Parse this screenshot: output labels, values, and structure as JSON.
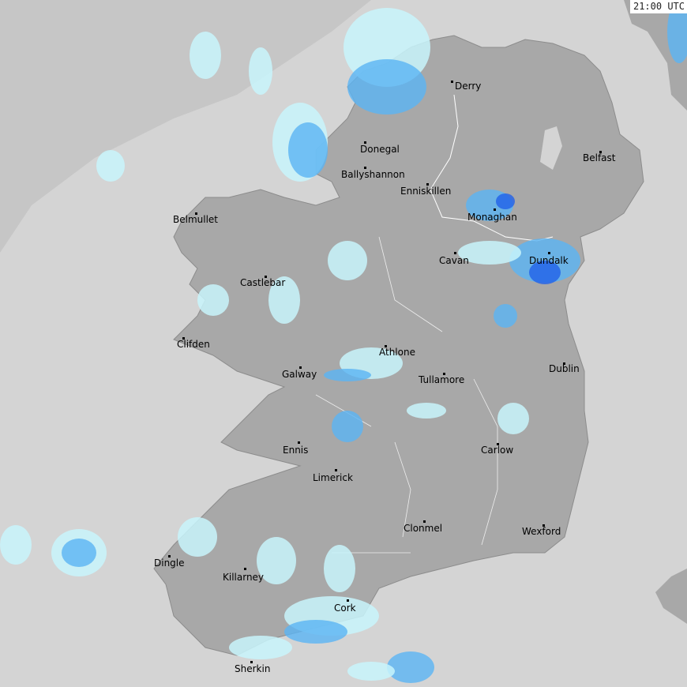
{
  "timestamp": "21:00 UTC",
  "colors": {
    "sea": "#d4d4d4",
    "far_sea": "#c6c6c6",
    "land": "#a8a8a8",
    "rain_light": "#c8f4fc",
    "rain_mid": "#5ab4f4",
    "rain_heavy": "#2060e8",
    "border": "#ffffff"
  },
  "towns": [
    "Derry",
    "Donegal",
    "Ballyshannon",
    "Enniskillen",
    "Belfast",
    "Monaghan",
    "Belmullet",
    "Cavan",
    "Dundalk",
    "Castlebar",
    "Clifden",
    "Athlone",
    "Galway",
    "Dublin",
    "Tullamore",
    "Ennis",
    "Carlow",
    "Limerick",
    "Clonmel",
    "Wexford",
    "Dingle",
    "Killarney",
    "Cork",
    "Sherkin"
  ]
}
